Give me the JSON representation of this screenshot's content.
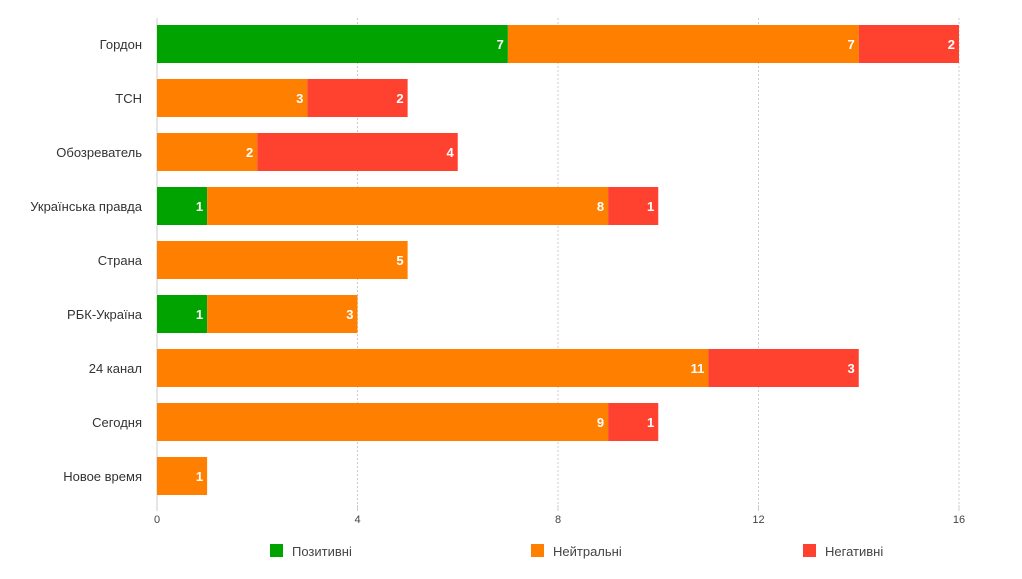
{
  "chart_data": {
    "type": "bar",
    "orientation": "horizontal",
    "stacked": true,
    "categories": [
      "Гордон",
      "ТСН",
      "Обозреватель",
      "Українська правда",
      "Страна",
      "РБК-Україна",
      "24 канал",
      "Сегодня",
      "Новое время"
    ],
    "series": [
      {
        "name": "Позитивні",
        "color": "#00a300",
        "values": [
          7,
          0,
          0,
          1,
          0,
          1,
          0,
          0,
          0
        ]
      },
      {
        "name": "Нейтральні",
        "color": "#ff8000",
        "values": [
          7,
          3,
          2,
          8,
          5,
          3,
          11,
          9,
          1
        ]
      },
      {
        "name": "Негативні",
        "color": "#ff4230",
        "values": [
          2,
          2,
          4,
          1,
          0,
          0,
          3,
          1,
          0
        ]
      }
    ],
    "xlim": [
      0,
      16
    ],
    "xticks": [
      "0",
      "4",
      "8",
      "12",
      "16"
    ],
    "grid": true,
    "legend": "bottom"
  }
}
